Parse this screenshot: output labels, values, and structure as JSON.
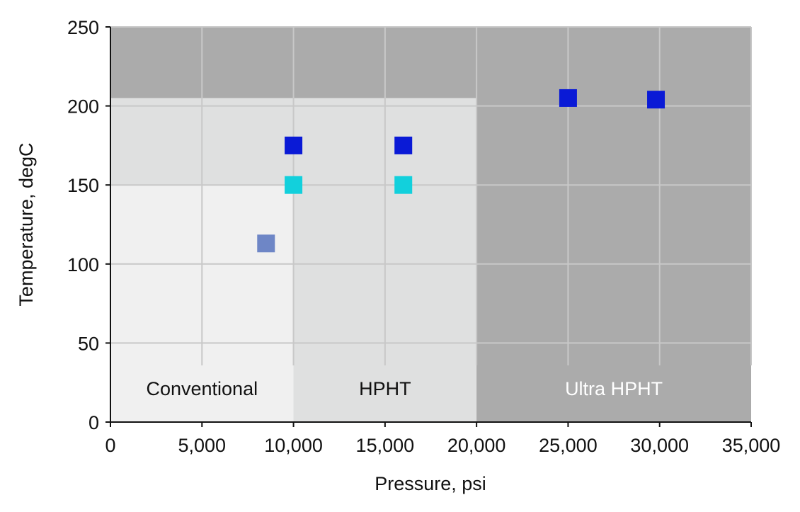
{
  "chart_data": {
    "type": "scatter",
    "xlabel": "Pressure, psi",
    "ylabel": "Temperature, degC",
    "xlim": [
      0,
      35000
    ],
    "ylim": [
      0,
      250
    ],
    "x_ticks": [
      0,
      5000,
      10000,
      15000,
      20000,
      25000,
      30000,
      35000
    ],
    "x_tick_labels": [
      "0",
      "5,000",
      "10,000",
      "15,000",
      "20,000",
      "25,000",
      "30,000",
      "35,000"
    ],
    "y_ticks": [
      0,
      50,
      100,
      150,
      200,
      250
    ],
    "y_tick_labels": [
      "0",
      "50",
      "100",
      "150",
      "200",
      "250"
    ],
    "grid": true,
    "regions": [
      {
        "name": "Conventional",
        "x": [
          0,
          10000
        ],
        "y": [
          0,
          150
        ],
        "color": "#f0f0f0",
        "label_color": "#111111"
      },
      {
        "name": "HPHT",
        "x": [
          0,
          20000
        ],
        "y": [
          0,
          205
        ],
        "color": "#dfe0e0",
        "label_color": "#111111"
      },
      {
        "name": "Ultra HPHT",
        "x": [
          0,
          35000
        ],
        "y": [
          0,
          250
        ],
        "color": "#ababab",
        "label_color": "#ffffff"
      }
    ],
    "points": [
      {
        "x": 8500,
        "y": 113,
        "color": "#6e86c6"
      },
      {
        "x": 10000,
        "y": 175,
        "color": "#0a1ad6"
      },
      {
        "x": 10000,
        "y": 150,
        "color": "#12d0dc"
      },
      {
        "x": 16000,
        "y": 175,
        "color": "#0a1ad6"
      },
      {
        "x": 16000,
        "y": 150,
        "color": "#12d0dc"
      },
      {
        "x": 25000,
        "y": 205,
        "color": "#0a1ad6"
      },
      {
        "x": 29800,
        "y": 204,
        "color": "#0a1ad6"
      }
    ]
  }
}
